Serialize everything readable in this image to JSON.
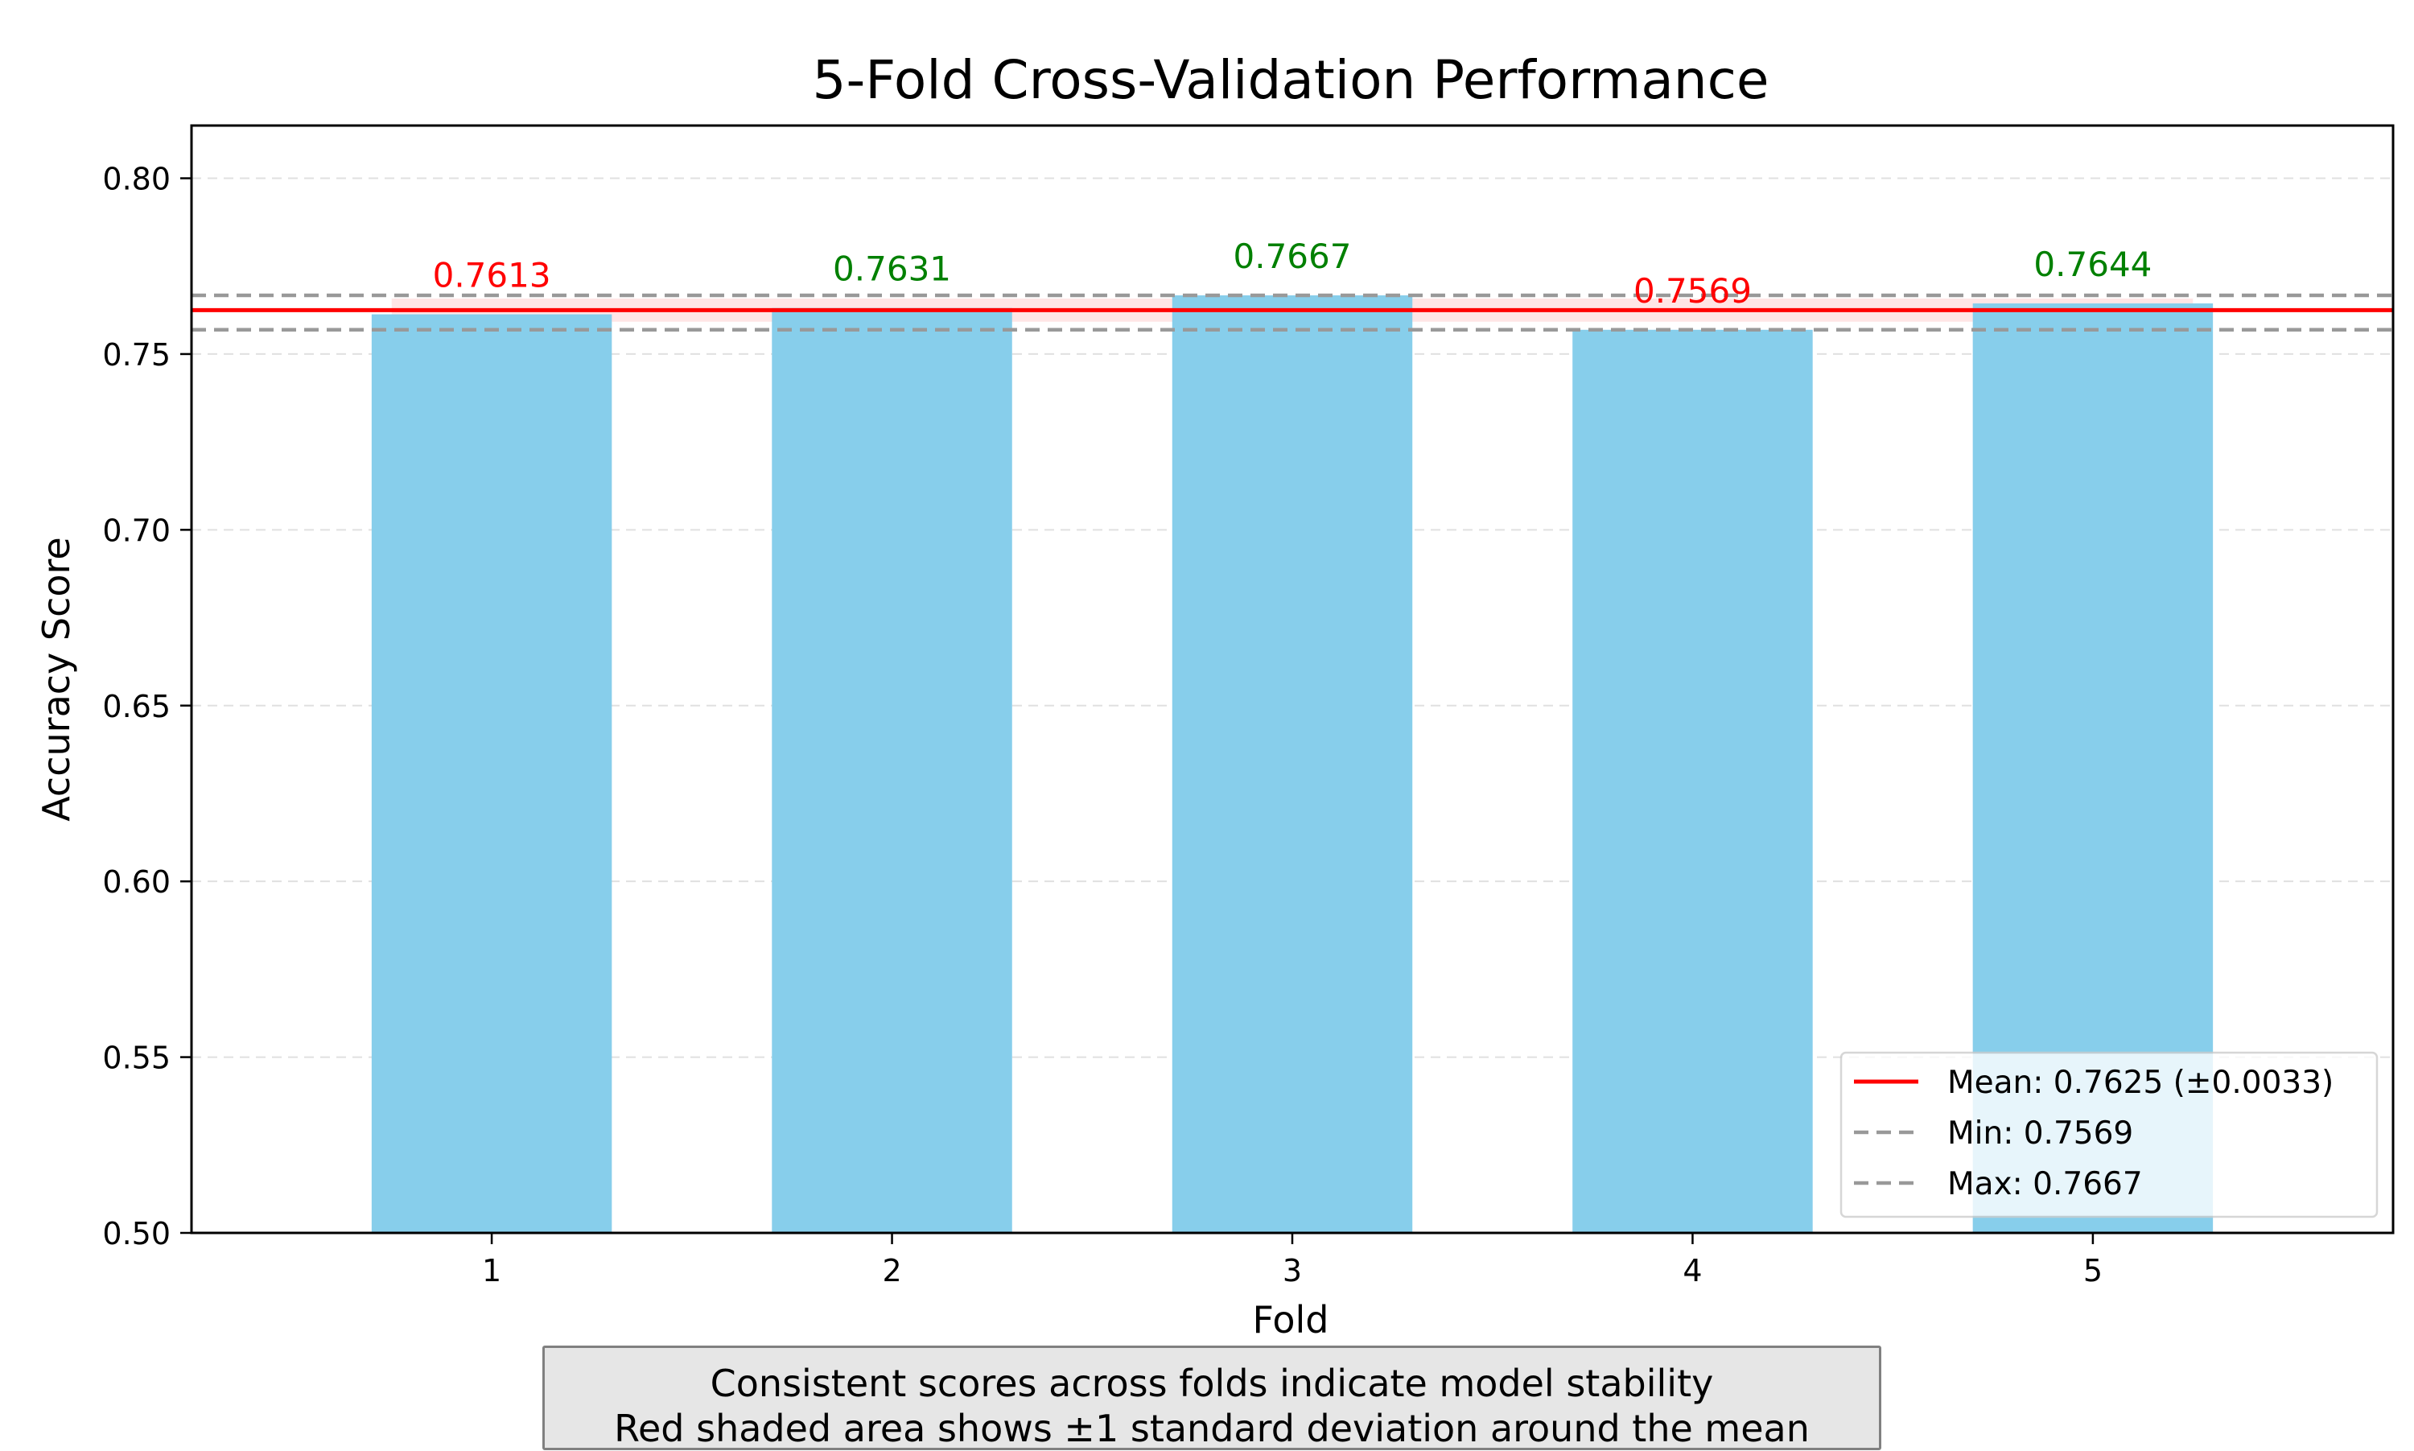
{
  "chart_data": {
    "type": "bar",
    "title": "5-Fold Cross-Validation Performance",
    "xlabel": "Fold",
    "ylabel": "Accuracy Score",
    "categories": [
      "1",
      "2",
      "3",
      "4",
      "5"
    ],
    "values": [
      0.7613,
      0.7631,
      0.7667,
      0.7569,
      0.7644
    ],
    "value_labels": [
      "0.7613",
      "0.7631",
      "0.7667",
      "0.7569",
      "0.7644"
    ],
    "label_colors": [
      "#ff0000",
      "#008000",
      "#008000",
      "#ff0000",
      "#008000"
    ],
    "bar_color": "#87ceeb",
    "ylim": [
      0.5,
      0.815
    ],
    "yticks": [
      0.5,
      0.55,
      0.6,
      0.65,
      0.7,
      0.75,
      0.8
    ],
    "ytick_labels": [
      "0.50",
      "0.55",
      "0.60",
      "0.65",
      "0.70",
      "0.75",
      "0.80"
    ],
    "grid": true,
    "mean": 0.7625,
    "std": 0.0033,
    "min": 0.7569,
    "max": 0.7667,
    "mean_color": "#ff0000",
    "band_color": "#ff0000",
    "minmax_color": "#999999",
    "legend_position": "lower-right",
    "legend": [
      {
        "label": "Mean: 0.7625 (±0.0033)",
        "style": "solid",
        "color": "#ff0000"
      },
      {
        "label": "Min: 0.7569",
        "style": "dashed",
        "color": "#999999"
      },
      {
        "label": "Max: 0.7667",
        "style": "dashed",
        "color": "#999999"
      }
    ]
  },
  "note": {
    "line1": "Consistent scores across folds indicate model stability",
    "line2": "Red shaded area shows ±1 standard deviation around the mean"
  }
}
